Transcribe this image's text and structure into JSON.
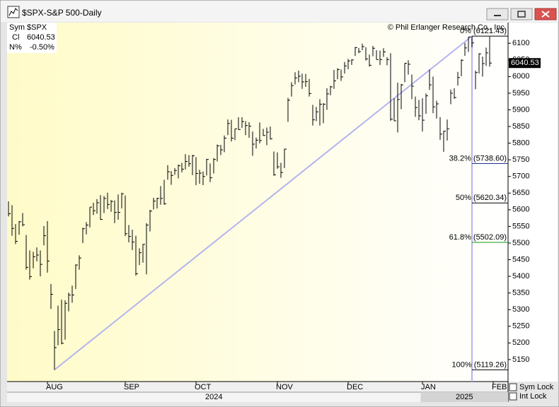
{
  "window_title": "$SPX-S&P 500-Daily",
  "sym_lock": "Sym Lock",
  "int_lock": "Int Lock",
  "chart_data": {
    "type": "ohlc",
    "copyright": "© Phil Erlanger Research Co., Inc.",
    "symbol_label": "Sym",
    "symbol": "$SPX",
    "close_label": "Cl",
    "change_label": "N%",
    "change": "-0.50%",
    "years": [
      "2024",
      "2025"
    ],
    "xlim": [
      -0.4,
      141.2
    ],
    "xticks": [
      {
        "value": 11,
        "label": "AUG"
      },
      {
        "value": 33,
        "label": "SEP"
      },
      {
        "value": 53,
        "label": "OCT"
      },
      {
        "value": 76,
        "label": "NOV"
      },
      {
        "value": 96,
        "label": "DEC"
      },
      {
        "value": 117,
        "label": "JAN"
      },
      {
        "value": 137,
        "label": "FEB"
      }
    ],
    "ylim": [
      5084,
      6162
    ],
    "yticks": [
      5150,
      5200,
      5250,
      5300,
      5350,
      5400,
      5450,
      5500,
      5550,
      5600,
      5650,
      5700,
      5750,
      5800,
      5850,
      5900,
      5950,
      6000,
      6050,
      6100
    ],
    "color": "#000000",
    "fib_color": "#b4b4f0",
    "fib_levels": [
      {
        "value": 6121.43,
        "label": "0% (6121.43)"
      },
      {
        "value": 5738.6,
        "label": "38.2% (5738.60)"
      },
      {
        "value": 5620.34,
        "label": "50% (5620.34)"
      },
      {
        "value": 5502.09,
        "label": "61.8% (5502.09)"
      },
      {
        "value": 5119.26,
        "label": "100% (5119.26)"
      }
    ],
    "bars": [
      [
        5625,
        5580,
        5588
      ],
      [
        5614,
        5522,
        5544
      ],
      [
        5557,
        5497,
        5505
      ],
      [
        5566,
        5525,
        5564
      ],
      [
        5590,
        5550,
        5555
      ],
      [
        5524,
        5420,
        5427
      ],
      [
        5478,
        5390,
        5399
      ],
      [
        5474,
        5424,
        5459
      ],
      [
        5487,
        5445,
        5464
      ],
      [
        5478,
        5400,
        5436
      ],
      [
        5551,
        5493,
        5522
      ],
      [
        5566,
        5411,
        5446
      ],
      [
        5377,
        5302,
        5346
      ],
      [
        5236,
        5119.26,
        5186
      ],
      [
        5312,
        5193,
        5240
      ],
      [
        5330,
        5196,
        5199
      ],
      [
        5328,
        5210,
        5319
      ],
      [
        5351,
        5295,
        5344
      ],
      [
        5372,
        5321,
        5344
      ],
      [
        5436,
        5362,
        5434
      ],
      [
        5463,
        5420,
        5455
      ],
      [
        5546,
        5500,
        5543
      ],
      [
        5563,
        5526,
        5554
      ],
      [
        5608,
        5547,
        5608
      ],
      [
        5621,
        5584,
        5597
      ],
      [
        5632,
        5588,
        5621
      ],
      [
        5644,
        5570,
        5571
      ],
      [
        5641,
        5590,
        5634
      ],
      [
        5651,
        5602,
        5616
      ],
      [
        5629,
        5594,
        5625
      ],
      [
        5628,
        5560,
        5592
      ],
      [
        5646,
        5570,
        5592
      ],
      [
        5651,
        5604,
        5648
      ],
      [
        5643,
        5521,
        5528
      ],
      [
        5554,
        5502,
        5520
      ],
      [
        5540,
        5479,
        5503
      ],
      [
        5522,
        5402,
        5408
      ],
      [
        5484,
        5434,
        5471
      ],
      [
        5497,
        5441,
        5496
      ],
      [
        5560,
        5406,
        5554
      ],
      [
        5600,
        5535,
        5596
      ],
      [
        5636,
        5601,
        5626
      ],
      [
        5636,
        5604,
        5634
      ],
      [
        5671,
        5615,
        5634
      ],
      [
        5690,
        5615,
        5618
      ],
      [
        5734,
        5690,
        5714
      ],
      [
        5716,
        5675,
        5703
      ],
      [
        5725,
        5705,
        5718
      ],
      [
        5736,
        5694,
        5732
      ],
      [
        5741,
        5712,
        5722
      ],
      [
        5767,
        5721,
        5745
      ],
      [
        5764,
        5729,
        5738
      ],
      [
        5765,
        5704,
        5762
      ],
      [
        5758,
        5674,
        5709
      ],
      [
        5720,
        5678,
        5710
      ],
      [
        5715,
        5674,
        5700
      ],
      [
        5753,
        5703,
        5751
      ],
      [
        5739,
        5683,
        5696
      ],
      [
        5755,
        5709,
        5751
      ],
      [
        5796,
        5745,
        5792
      ],
      [
        5795,
        5764,
        5780
      ],
      [
        5823,
        5773,
        5815
      ],
      [
        5871,
        5824,
        5859
      ],
      [
        5870,
        5805,
        5815
      ],
      [
        5843,
        5809,
        5843
      ],
      [
        5878,
        5840,
        5841
      ],
      [
        5878,
        5846,
        5865
      ],
      [
        5866,
        5824,
        5853
      ],
      [
        5863,
        5816,
        5851
      ],
      [
        5835,
        5762,
        5797
      ],
      [
        5817,
        5784,
        5809
      ],
      [
        5862,
        5799,
        5808
      ],
      [
        5843,
        5822,
        5823
      ],
      [
        5847,
        5794,
        5833
      ],
      [
        5850,
        5811,
        5813
      ],
      [
        5775,
        5702,
        5705
      ],
      [
        5772,
        5723,
        5729
      ],
      [
        5741,
        5696,
        5712
      ],
      [
        5783,
        5725,
        5782
      ],
      [
        5936,
        5864,
        5929
      ],
      [
        5983,
        5940,
        5973
      ],
      [
        6013,
        5976,
        5996
      ],
      [
        6018,
        5983,
        6001
      ],
      [
        6009,
        5963,
        5984
      ],
      [
        6008,
        5969,
        5985
      ],
      [
        5993,
        5940,
        5949
      ],
      [
        5915,
        5853,
        5870
      ],
      [
        5909,
        5866,
        5894
      ],
      [
        5932,
        5853,
        5917
      ],
      [
        5920,
        5860,
        5917
      ],
      [
        5965,
        5900,
        5948
      ],
      [
        5972,
        5944,
        5969
      ],
      [
        6020,
        5963,
        5987
      ],
      [
        6025,
        5992,
        6021
      ],
      [
        6021,
        5987,
        5999
      ],
      [
        6044,
        6009,
        6032
      ],
      [
        6053,
        6022,
        6047
      ],
      [
        6052,
        6035,
        6050
      ],
      [
        6089,
        6062,
        6087
      ],
      [
        6086,
        6070,
        6075
      ],
      [
        6099,
        6079,
        6090
      ],
      [
        6088,
        6048,
        6053
      ],
      [
        6066,
        6030,
        6034
      ],
      [
        6092,
        6061,
        6085
      ],
      [
        6079,
        6051,
        6051
      ],
      [
        6078,
        6035,
        6051
      ],
      [
        6085,
        6059,
        6074
      ],
      [
        6058,
        6034,
        6051
      ],
      [
        6070,
        5867,
        5872
      ],
      [
        5935,
        5867,
        5867
      ],
      [
        5982,
        5832,
        5931
      ],
      [
        5978,
        5902,
        5975
      ],
      [
        6040,
        5983,
        6040
      ],
      [
        6049,
        6006,
        6037
      ],
      [
        6006,
        5932,
        5971
      ],
      [
        5940,
        5879,
        5907
      ],
      [
        5930,
        5869,
        5882
      ],
      [
        5935,
        5835,
        5869
      ],
      [
        5949,
        5888,
        5942
      ],
      [
        6021,
        5960,
        5975
      ],
      [
        6000,
        5890,
        5909
      ],
      [
        5927,
        5874,
        5918
      ],
      [
        5878,
        5810,
        5827
      ],
      [
        5837,
        5774,
        5836
      ],
      [
        5871,
        5808,
        5843
      ],
      [
        5961,
        5917,
        5950
      ],
      [
        5965,
        5933,
        5937
      ],
      [
        6014,
        5973,
        5997
      ],
      [
        6052,
        6001,
        6049
      ],
      [
        6101,
        6062,
        6086
      ],
      [
        6119,
        6074,
        6119
      ],
      [
        6121.43,
        6088,
        6101
      ],
      [
        6018,
        5962,
        6012
      ],
      [
        6070,
        6009,
        6068
      ],
      [
        6060,
        6000,
        6039
      ],
      [
        6087,
        6032,
        6071
      ],
      [
        6120,
        6030,
        6040.53
      ]
    ]
  }
}
